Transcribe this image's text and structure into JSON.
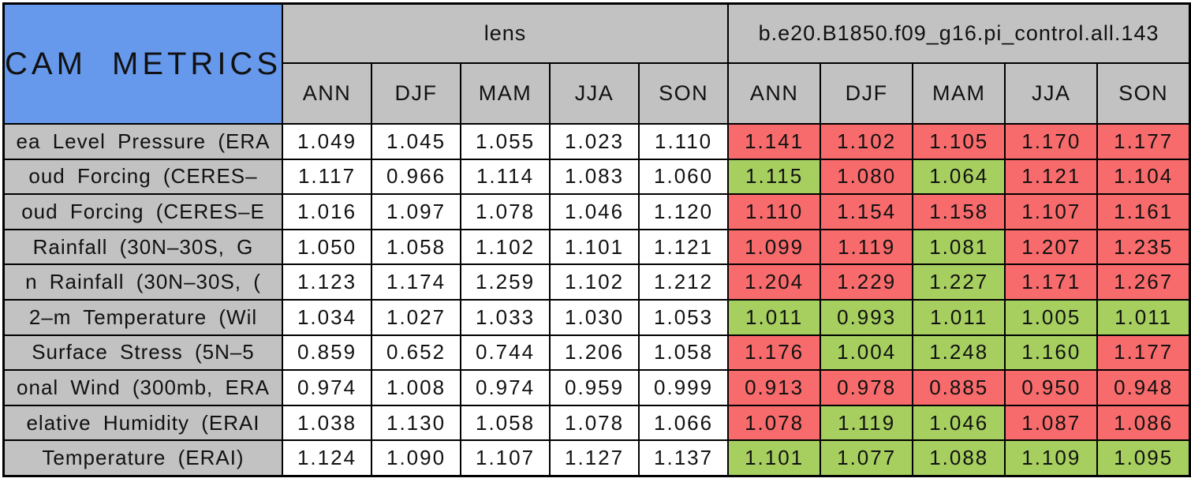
{
  "title": "CAM METRICS",
  "colors": {
    "title_blue": "#6698eb",
    "header_grey": "#c2c2c2",
    "cell_white": "#ffffff",
    "cell_red": "#f86b6c",
    "cell_green": "#a6cf5f",
    "border_black": "#000000"
  },
  "chart_data": {
    "type": "table",
    "title": "CAM METRICS",
    "column_groups": [
      {
        "label": "lens",
        "columns": [
          "ANN",
          "DJF",
          "MAM",
          "JJA",
          "SON"
        ]
      },
      {
        "label": "b.e20.B1850.f09_g16.pi_control.all.143",
        "columns": [
          "ANN",
          "DJF",
          "MAM",
          "JJA",
          "SON"
        ]
      }
    ],
    "rows": [
      {
        "label": "ea Level Pressure (ERA",
        "lens_values": [
          "1.049",
          "1.045",
          "1.055",
          "1.023",
          "1.110"
        ],
        "case_values": [
          "1.141",
          "1.102",
          "1.105",
          "1.170",
          "1.177"
        ],
        "case_cell_colors": [
          "red",
          "red",
          "red",
          "red",
          "red"
        ]
      },
      {
        "label": "oud Forcing (CERES–",
        "lens_values": [
          "1.117",
          "0.966",
          "1.114",
          "1.083",
          "1.060"
        ],
        "case_values": [
          "1.115",
          "1.080",
          "1.064",
          "1.121",
          "1.104"
        ],
        "case_cell_colors": [
          "green",
          "red",
          "green",
          "red",
          "red"
        ]
      },
      {
        "label": "oud Forcing (CERES–E",
        "lens_values": [
          "1.016",
          "1.097",
          "1.078",
          "1.046",
          "1.120"
        ],
        "case_values": [
          "1.110",
          "1.154",
          "1.158",
          "1.107",
          "1.161"
        ],
        "case_cell_colors": [
          "red",
          "red",
          "red",
          "red",
          "red"
        ]
      },
      {
        "label": "Rainfall (30N–30S, G",
        "lens_values": [
          "1.050",
          "1.058",
          "1.102",
          "1.101",
          "1.121"
        ],
        "case_values": [
          "1.099",
          "1.119",
          "1.081",
          "1.207",
          "1.235"
        ],
        "case_cell_colors": [
          "red",
          "red",
          "green",
          "red",
          "red"
        ]
      },
      {
        "label": "n Rainfall (30N–30S, (",
        "lens_values": [
          "1.123",
          "1.174",
          "1.259",
          "1.102",
          "1.212"
        ],
        "case_values": [
          "1.204",
          "1.229",
          "1.227",
          "1.171",
          "1.267"
        ],
        "case_cell_colors": [
          "red",
          "red",
          "green",
          "red",
          "red"
        ]
      },
      {
        "label": "2–m Temperature (Wil",
        "lens_values": [
          "1.034",
          "1.027",
          "1.033",
          "1.030",
          "1.053"
        ],
        "case_values": [
          "1.011",
          "0.993",
          "1.011",
          "1.005",
          "1.011"
        ],
        "case_cell_colors": [
          "green",
          "green",
          "green",
          "green",
          "green"
        ]
      },
      {
        "label": "Surface Stress (5N–5",
        "lens_values": [
          "0.859",
          "0.652",
          "0.744",
          "1.206",
          "1.058"
        ],
        "case_values": [
          "1.176",
          "1.004",
          "1.248",
          "1.160",
          "1.177"
        ],
        "case_cell_colors": [
          "red",
          "green",
          "green",
          "green",
          "red"
        ]
      },
      {
        "label": "onal Wind (300mb, ERA",
        "lens_values": [
          "0.974",
          "1.008",
          "0.974",
          "0.959",
          "0.999"
        ],
        "case_values": [
          "0.913",
          "0.978",
          "0.885",
          "0.950",
          "0.948"
        ],
        "case_cell_colors": [
          "red",
          "red",
          "red",
          "red",
          "red"
        ]
      },
      {
        "label": "elative Humidity (ERAI",
        "lens_values": [
          "1.038",
          "1.130",
          "1.058",
          "1.078",
          "1.066"
        ],
        "case_values": [
          "1.078",
          "1.119",
          "1.046",
          "1.087",
          "1.086"
        ],
        "case_cell_colors": [
          "red",
          "green",
          "green",
          "red",
          "red"
        ]
      },
      {
        "label": "Temperature (ERAI)",
        "lens_values": [
          "1.124",
          "1.090",
          "1.107",
          "1.127",
          "1.137"
        ],
        "case_values": [
          "1.101",
          "1.077",
          "1.088",
          "1.109",
          "1.095"
        ],
        "case_cell_colors": [
          "green",
          "green",
          "green",
          "green",
          "green"
        ]
      }
    ]
  }
}
